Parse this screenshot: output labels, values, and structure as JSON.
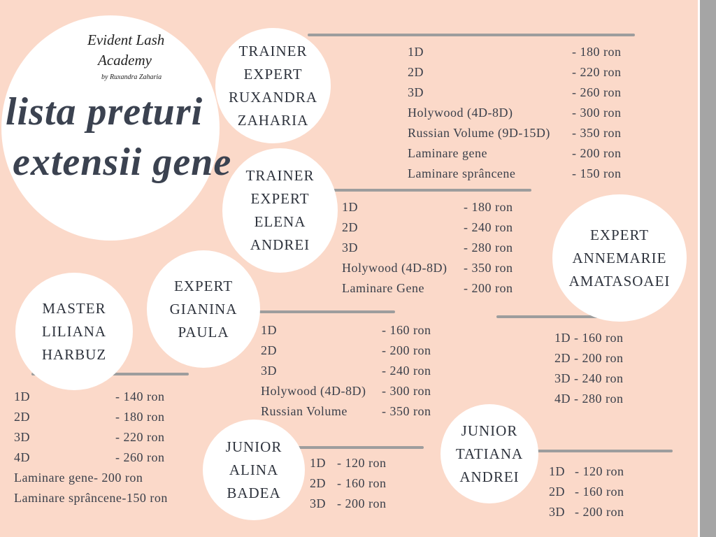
{
  "header": {
    "logo": [
      "Evident Lash",
      "Academy",
      "by Ruxandra Zaharia"
    ],
    "title": [
      "lista preturi",
      "extensii gene"
    ]
  },
  "sections": [
    {
      "name": [
        "TRAINER",
        "EXPERT",
        "RUXANDRA",
        "ZAHARIA"
      ],
      "items": [
        [
          "1D",
          "- 180 ron"
        ],
        [
          "2D",
          "- 220 ron"
        ],
        [
          "3D",
          "- 260 ron"
        ],
        [
          "Holywood (4D-8D)",
          "- 300 ron"
        ],
        [
          "Russian Volume (9D-15D)",
          "- 350 ron"
        ],
        [
          "Laminare gene",
          "- 200 ron"
        ],
        [
          "Laminare sprâncene",
          "- 150 ron"
        ]
      ]
    },
    {
      "name": [
        "TRAINER",
        "EXPERT",
        "ELENA",
        "ANDREI"
      ],
      "items": [
        [
          "1D",
          "- 180 ron"
        ],
        [
          "2D",
          "- 240 ron"
        ],
        [
          "3D",
          "- 280 ron"
        ],
        [
          "Holywood (4D-8D)",
          "- 350 ron"
        ],
        [
          "Laminare Gene",
          "- 200 ron"
        ]
      ]
    },
    {
      "name": [
        "EXPERT",
        "ANNEMARIE",
        "AMATASOAEI"
      ],
      "items": [
        [
          "1D",
          "- 160 ron"
        ],
        [
          "2D",
          "- 200 ron"
        ],
        [
          "3D",
          "- 240 ron"
        ],
        [
          "4D",
          "- 280 ron"
        ]
      ]
    },
    {
      "name": [
        "EXPERT",
        "GIANINA",
        "PAULA"
      ],
      "items": [
        [
          "1D",
          "- 160 ron"
        ],
        [
          "2D",
          "- 200 ron"
        ],
        [
          "3D",
          "- 240 ron"
        ],
        [
          "Holywood (4D-8D)",
          "- 300 ron"
        ],
        [
          "Russian Volume",
          "- 350 ron"
        ]
      ]
    },
    {
      "name": [
        "MASTER",
        "LILIANA",
        "HARBUZ"
      ],
      "items": [
        [
          "1D",
          "- 140 ron"
        ],
        [
          "2D",
          "- 180 ron"
        ],
        [
          "3D",
          "- 220 ron"
        ],
        [
          "4D",
          "- 260 ron"
        ],
        [
          "Laminare gene",
          "- 200 ron"
        ],
        [
          "Laminare sprâncene",
          "-150 ron"
        ]
      ]
    },
    {
      "name": [
        "JUNIOR",
        "ALINA",
        "BADEA"
      ],
      "items": [
        [
          "1D",
          "- 120 ron"
        ],
        [
          "2D",
          "- 160 ron"
        ],
        [
          "3D",
          "- 200 ron"
        ]
      ]
    },
    {
      "name": [
        "JUNIOR",
        "TATIANA",
        "ANDREI"
      ],
      "items": [
        [
          "1D",
          "- 120 ron"
        ],
        [
          "2D",
          "- 160 ron"
        ],
        [
          "3D",
          "- 200 ron"
        ]
      ]
    }
  ]
}
